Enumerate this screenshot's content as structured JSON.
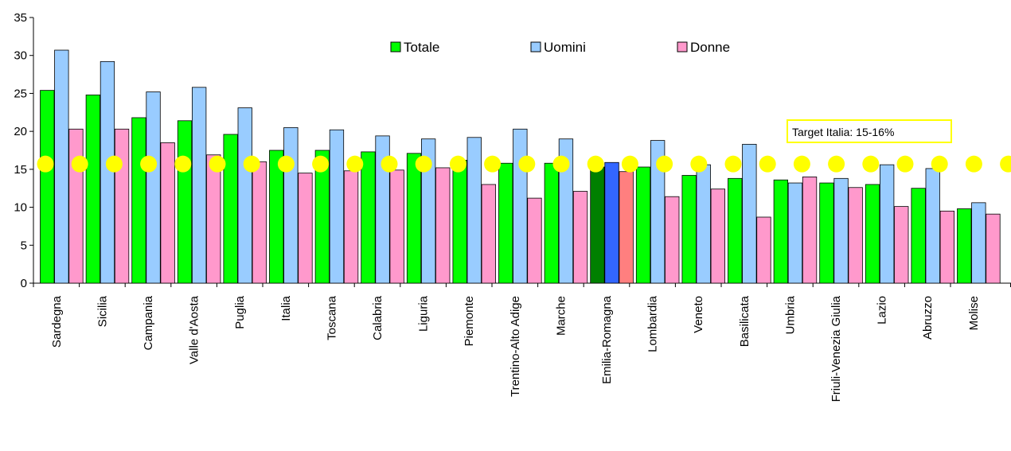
{
  "chart_data": {
    "type": "bar",
    "categories": [
      "Sardegna",
      "Sicilia",
      "Campania",
      "Valle d'Aosta",
      "Puglia",
      "Italia",
      "Toscana",
      "Calabria",
      "Liguria",
      "Piemonte",
      "Trentino-Alto Adige",
      "Marche",
      "Emilia-Romagna",
      "Lombardia",
      "Veneto",
      "Basilicata",
      "Umbria",
      "Friuli-Venezia Giulia",
      "Lazio",
      "Abruzzo",
      "Molise"
    ],
    "series": [
      {
        "name": "Totale",
        "color": "#00ff00",
        "values": [
          25.4,
          24.8,
          21.8,
          21.4,
          19.6,
          17.5,
          17.5,
          17.3,
          17.1,
          16.2,
          15.8,
          15.8,
          15.3,
          15.3,
          14.2,
          13.8,
          13.6,
          13.2,
          13.0,
          12.5,
          9.8
        ]
      },
      {
        "name": "Uomini",
        "color": "#99ccff",
        "values": [
          30.7,
          29.2,
          25.2,
          25.8,
          23.1,
          20.5,
          20.2,
          19.4,
          19.0,
          19.2,
          20.3,
          19.0,
          15.9,
          18.8,
          15.6,
          18.3,
          13.2,
          13.8,
          15.6,
          15.1,
          10.6
        ]
      },
      {
        "name": "Donne",
        "color": "#ff99cc",
        "values": [
          20.3,
          20.3,
          18.5,
          16.9,
          16.0,
          14.5,
          14.8,
          14.9,
          15.2,
          13.0,
          11.2,
          12.1,
          14.7,
          11.4,
          12.4,
          8.7,
          14.0,
          12.6,
          10.1,
          9.5,
          9.1
        ]
      }
    ],
    "highlight": {
      "category": "Emilia-Romagna",
      "colors": [
        "#008000",
        "#3366ff",
        "#ff7f7f"
      ]
    },
    "target": {
      "value": 15.7,
      "label": "Target Italia: 15-16%",
      "marker_color": "#ffff00"
    },
    "ylim": [
      0,
      35
    ],
    "yticks": [
      0,
      5,
      10,
      15,
      20,
      25,
      30,
      35
    ],
    "grid": false,
    "legend_position": "top-center",
    "xlabel": "",
    "ylabel": "",
    "title": ""
  }
}
